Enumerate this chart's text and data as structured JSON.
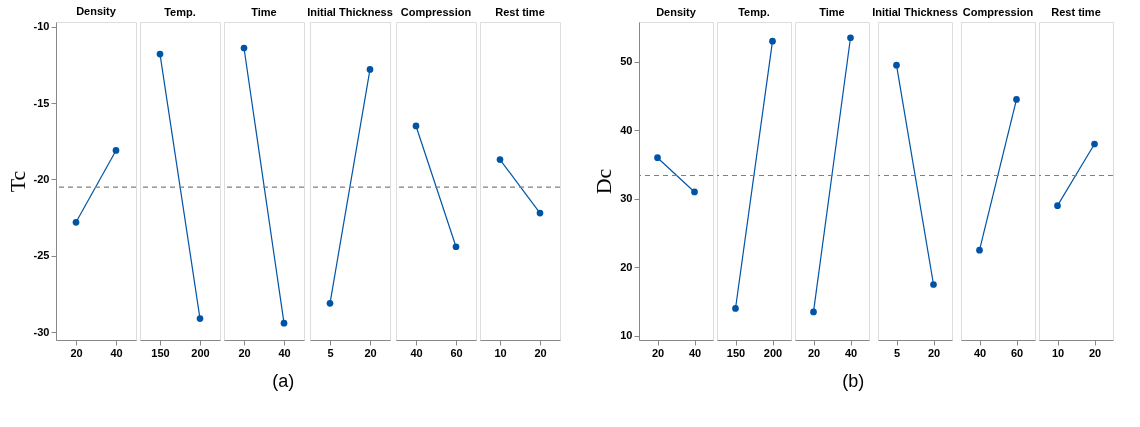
{
  "chart_data": [
    {
      "type": "line",
      "title": "Density",
      "ylabel": "Tc",
      "categories": [
        "20",
        "40"
      ],
      "values": [
        -22.8,
        -18.1
      ],
      "color": "#0054a6",
      "ylim": [
        -30.5,
        -9.7
      ],
      "yticks": [
        -30,
        -25,
        -20,
        -15,
        -10
      ],
      "ref_lines": [
        {
          "axis": "y",
          "value": -20.5,
          "color": "#808080",
          "line_style": "dashed"
        }
      ],
      "marker": "circle",
      "annotations": [
        "(a)"
      ]
    },
    {
      "type": "line",
      "title": "Temp.",
      "categories": [
        "150",
        "200"
      ],
      "values": [
        -11.8,
        -29.1
      ],
      "color": "#0054a6",
      "ylim": [
        -30.5,
        -9.7
      ],
      "tick_labels": "x",
      "ref_lines": [
        {
          "axis": "y",
          "value": -20.5,
          "color": "#808080",
          "line_style": "dashed"
        }
      ],
      "marker": "circle"
    },
    {
      "type": "line",
      "title": "Time",
      "categories": [
        "20",
        "40"
      ],
      "values": [
        -11.4,
        -29.4
      ],
      "color": "#0054a6",
      "ylim": [
        -30.5,
        -9.7
      ],
      "tick_labels": "x",
      "ref_lines": [
        {
          "axis": "y",
          "value": -20.5,
          "color": "#808080",
          "line_style": "dashed"
        }
      ],
      "marker": "circle"
    },
    {
      "type": "line",
      "title": "Initial Thickness",
      "categories": [
        "5",
        "20"
      ],
      "values": [
        -28.1,
        -12.8
      ],
      "color": "#0054a6",
      "ylim": [
        -30.5,
        -9.7
      ],
      "tick_labels": "x",
      "ref_lines": [
        {
          "axis": "y",
          "value": -20.5,
          "color": "#808080",
          "line_style": "dashed"
        }
      ],
      "marker": "circle"
    },
    {
      "type": "line",
      "title": "Compression",
      "categories": [
        "40",
        "60"
      ],
      "values": [
        -16.5,
        -24.4
      ],
      "color": "#0054a6",
      "ylim": [
        -30.5,
        -9.7
      ],
      "tick_labels": "x",
      "ref_lines": [
        {
          "axis": "y",
          "value": -20.5,
          "color": "#808080",
          "line_style": "dashed"
        }
      ],
      "marker": "circle"
    },
    {
      "type": "line",
      "title": "Rest time",
      "categories": [
        "10",
        "20"
      ],
      "values": [
        -18.7,
        -22.2
      ],
      "color": "#0054a6",
      "ylim": [
        -30.5,
        -9.7
      ],
      "tick_labels": "x",
      "ref_lines": [
        {
          "axis": "y",
          "value": -20.5,
          "color": "#808080",
          "line_style": "dashed"
        }
      ],
      "marker": "circle"
    },
    {
      "type": "line",
      "title": "Density",
      "ylabel": "Dc",
      "categories": [
        "20",
        "40"
      ],
      "values": [
        36,
        31
      ],
      "color": "#0054a6",
      "ylim": [
        9.4,
        55.8
      ],
      "yticks": [
        10,
        20,
        30,
        40,
        50
      ],
      "ref_lines": [
        {
          "axis": "y",
          "value": 33.4,
          "color": "#808080",
          "line_style": "dashed"
        }
      ],
      "marker": "circle",
      "annotations": [
        "(b)"
      ]
    },
    {
      "type": "line",
      "title": "Temp.",
      "categories": [
        "150",
        "200"
      ],
      "values": [
        14,
        53
      ],
      "color": "#0054a6",
      "ylim": [
        9.4,
        55.8
      ],
      "tick_labels": "x",
      "ref_lines": [
        {
          "axis": "y",
          "value": 33.4,
          "color": "#808080",
          "line_style": "dashed"
        }
      ],
      "marker": "circle"
    },
    {
      "type": "line",
      "title": "Time",
      "categories": [
        "20",
        "40"
      ],
      "values": [
        13.5,
        53.5
      ],
      "color": "#0054a6",
      "ylim": [
        9.4,
        55.8
      ],
      "tick_labels": "x",
      "ref_lines": [
        {
          "axis": "y",
          "value": 33.4,
          "color": "#808080",
          "line_style": "dashed"
        }
      ],
      "marker": "circle"
    },
    {
      "type": "line",
      "title": "Initial Thickness",
      "categories": [
        "5",
        "20"
      ],
      "values": [
        49.5,
        17.5
      ],
      "color": "#0054a6",
      "ylim": [
        9.4,
        55.8
      ],
      "tick_labels": "x",
      "ref_lines": [
        {
          "axis": "y",
          "value": 33.4,
          "color": "#808080",
          "line_style": "dashed"
        }
      ],
      "marker": "circle"
    },
    {
      "type": "line",
      "title": "Compression",
      "categories": [
        "40",
        "60"
      ],
      "values": [
        22.5,
        44.5
      ],
      "color": "#0054a6",
      "ylim": [
        9.4,
        55.8
      ],
      "tick_labels": "x",
      "ref_lines": [
        {
          "axis": "y",
          "value": 33.4,
          "color": "#808080",
          "line_style": "dashed"
        }
      ],
      "marker": "circle"
    },
    {
      "type": "line",
      "title": "Rest time",
      "categories": [
        "10",
        "20"
      ],
      "values": [
        29,
        38
      ],
      "color": "#0054a6",
      "ylim": [
        9.4,
        55.8
      ],
      "tick_labels": "x",
      "ref_lines": [
        {
          "axis": "y",
          "value": 33.4,
          "color": "#808080",
          "line_style": "dashed"
        }
      ],
      "marker": "circle"
    }
  ]
}
